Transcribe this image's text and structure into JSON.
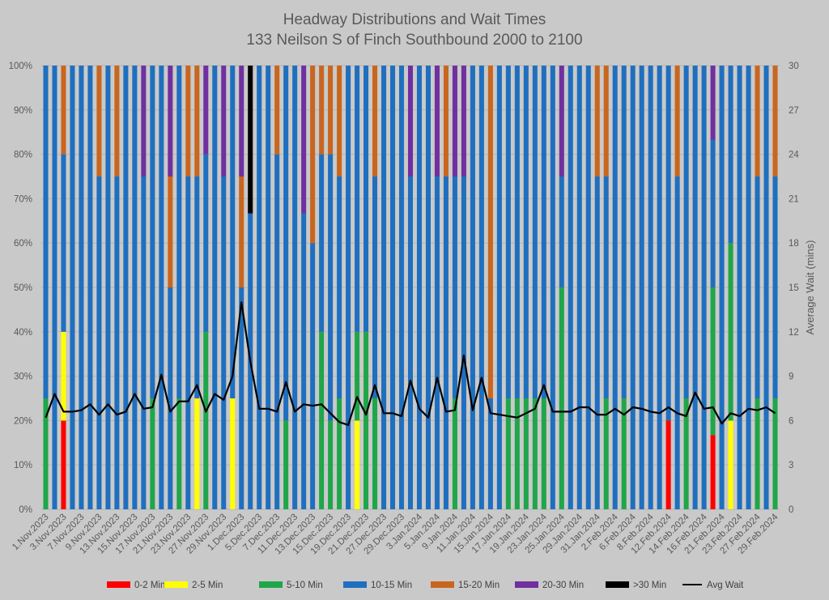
{
  "chart_data": {
    "type": "bar",
    "title": "Headway Distributions and Wait Times",
    "subtitle": "133 Neilson  S of Finch Southbound 2000 to 2100",
    "y2label": "Average Wait (mins)",
    "ylim": [
      0,
      100
    ],
    "y2lim": [
      0,
      30
    ],
    "yticks": [
      "0%",
      "10%",
      "20%",
      "30%",
      "40%",
      "50%",
      "60%",
      "70%",
      "80%",
      "90%",
      "100%"
    ],
    "y2ticks": [
      "0",
      "3",
      "6",
      "9",
      "12",
      "15",
      "18",
      "21",
      "24",
      "27",
      "30"
    ],
    "colors": {
      "0-2 Min": "#ff0000",
      "2-5 Min": "#ffff00",
      "5-10 Min": "#1fa64a",
      "10-15 Min": "#1f6fbf",
      "15-20 Min": "#c8661f",
      "20-30 Min": "#7030a0",
      ">30 Min": "#000000",
      "Avg Wait": "#000000"
    },
    "legend": [
      "0-2 Min",
      "2-5 Min",
      "5-10 Min",
      "10-15 Min",
      "15-20 Min",
      "20-30 Min",
      ">30 Min",
      "Avg Wait"
    ],
    "categories": [
      "1.Nov.2023",
      "2.Nov.2023",
      "3.Nov.2023",
      "6.Nov.2023",
      "7.Nov.2023",
      "8.Nov.2023",
      "9.Nov.2023",
      "10.Nov.2023",
      "13.Nov.2023",
      "14.Nov.2023",
      "15.Nov.2023",
      "16.Nov.2023",
      "17.Nov.2023",
      "20.Nov.2023",
      "21.Nov.2023",
      "22.Nov.2023",
      "23.Nov.2023",
      "24.Nov.2023",
      "27.Nov.2023",
      "28.Nov.2023",
      "29.Nov.2023",
      "30.Nov.2023",
      "1.Dec.2023",
      "4.Dec.2023",
      "5.Dec.2023",
      "6.Dec.2023",
      "7.Dec.2023",
      "8.Dec.2023",
      "11.Dec.2023",
      "12.Dec.2023",
      "13.Dec.2023",
      "14.Dec.2023",
      "15.Dec.2023",
      "18.Dec.2023",
      "19.Dec.2023",
      "20.Dec.2023",
      "21.Dec.2023",
      "22.Dec.2023",
      "27.Dec.2023",
      "28.Dec.2023",
      "29.Dec.2023",
      "2.Jan.2024",
      "3.Jan.2024",
      "4.Jan.2024",
      "5.Jan.2024",
      "8.Jan.2024",
      "9.Jan.2024",
      "10.Jan.2024",
      "11.Jan.2024",
      "12.Jan.2024",
      "15.Jan.2024",
      "16.Jan.2024",
      "17.Jan.2024",
      "18.Jan.2024",
      "19.Jan.2024",
      "22.Jan.2024",
      "23.Jan.2024",
      "24.Jan.2024",
      "25.Jan.2024",
      "26.Jan.2024",
      "29.Jan.2024",
      "30.Jan.2024",
      "31.Jan.2024",
      "1.Feb.2024",
      "2.Feb.2024",
      "5.Feb.2024",
      "6.Feb.2024",
      "7.Feb.2024",
      "8.Feb.2024",
      "9.Feb.2024",
      "12.Feb.2024",
      "13.Feb.2024",
      "14.Feb.2024",
      "15.Feb.2024",
      "16.Feb.2024",
      "20.Feb.2024",
      "21.Feb.2024",
      "22.Feb.2024",
      "23.Feb.2024",
      "26.Feb.2024",
      "27.Feb.2024",
      "28.Feb.2024",
      "29.Feb.2024"
    ],
    "xtick_labels": [
      "1.Nov.2023",
      "3.Nov.2023",
      "7.Nov.2023",
      "9.Nov.2023",
      "13.Nov.2023",
      "15.Nov.2023",
      "17.Nov.2023",
      "21.Nov.2023",
      "23.Nov.2023",
      "27.Nov.2023",
      "29.Nov.2023",
      "1.Dec.2023",
      "5.Dec.2023",
      "7.Dec.2023",
      "11.Dec.2023",
      "13.Dec.2023",
      "15.Dec.2023",
      "19.Dec.2023",
      "21.Dec.2023",
      "27.Dec.2023",
      "29.Dec.2023",
      "3.Jan.2024",
      "5.Jan.2024",
      "9.Jan.2024",
      "11.Jan.2024",
      "15.Jan.2024",
      "17.Jan.2024",
      "19.Jan.2024",
      "23.Jan.2024",
      "25.Jan.2024",
      "29.Jan.2024",
      "31.Jan.2024",
      "2.Feb.2024",
      "6.Feb.2024",
      "8.Feb.2024",
      "12.Feb.2024",
      "14.Feb.2024",
      "16.Feb.2024",
      "21.Feb.2024",
      "23.Feb.2024",
      "27.Feb.2024",
      "29.Feb.2024"
    ],
    "series": [
      {
        "name": "0-2 Min",
        "values": [
          0,
          0,
          20,
          0,
          0,
          0,
          0,
          0,
          0,
          0,
          0,
          0,
          0,
          0,
          0,
          0,
          0,
          0,
          0,
          0,
          0,
          0,
          0,
          0,
          0,
          0,
          0,
          0,
          0,
          0,
          0,
          0,
          0,
          0,
          0,
          0,
          0,
          0,
          0,
          0,
          0,
          0,
          0,
          0,
          0,
          0,
          0,
          0,
          0,
          0,
          0,
          0,
          0,
          0,
          0,
          0,
          0,
          0,
          0,
          0,
          0,
          0,
          0,
          0,
          0,
          0,
          0,
          0,
          0,
          0,
          20,
          0,
          0,
          0,
          0,
          16.7,
          0,
          0,
          0,
          0,
          0,
          0,
          0
        ]
      },
      {
        "name": "2-5 Min",
        "values": [
          0,
          0,
          20,
          0,
          0,
          0,
          0,
          0,
          0,
          0,
          0,
          0,
          0,
          0,
          0,
          0,
          0,
          25,
          0,
          0,
          0,
          25,
          0,
          0,
          0,
          0,
          0,
          0,
          0,
          0,
          0,
          0,
          0,
          0,
          0,
          20,
          0,
          0,
          0,
          0,
          0,
          0,
          0,
          0,
          0,
          0,
          0,
          0,
          0,
          0,
          0,
          0,
          0,
          0,
          0,
          0,
          0,
          0,
          0,
          0,
          0,
          0,
          0,
          0,
          0,
          0,
          0,
          0,
          0,
          0,
          0,
          0,
          0,
          0,
          0,
          0,
          0,
          20,
          0,
          0,
          0,
          0,
          0
        ]
      },
      {
        "name": "5-10 Min",
        "values": [
          25,
          0,
          0,
          0,
          0,
          0,
          0,
          0,
          0,
          0,
          0,
          0,
          25,
          0,
          0,
          25,
          0,
          0,
          40,
          0,
          0,
          0,
          0,
          0,
          0,
          0,
          0,
          20,
          0,
          0,
          0,
          40,
          20,
          25,
          0,
          20,
          40,
          25,
          0,
          0,
          0,
          0,
          0,
          0,
          0,
          0,
          25,
          0,
          0,
          0,
          0,
          0,
          25,
          25,
          25,
          25,
          25,
          0,
          50,
          0,
          0,
          0,
          0,
          25,
          0,
          25,
          0,
          0,
          0,
          0,
          0,
          0,
          25,
          0,
          0,
          33.3,
          0,
          40,
          0,
          0,
          25,
          0,
          25
        ]
      },
      {
        "name": "10-15 Min",
        "values": [
          75,
          100,
          40,
          100,
          100,
          100,
          75,
          100,
          75,
          100,
          100,
          75,
          75,
          100,
          50,
          75,
          75,
          50,
          40,
          100,
          75,
          75,
          50,
          66.7,
          100,
          100,
          80,
          80,
          100,
          66.7,
          60,
          40,
          60,
          50,
          100,
          60,
          60,
          50,
          100,
          100,
          100,
          75,
          100,
          100,
          75,
          75,
          50,
          75,
          100,
          100,
          25,
          100,
          75,
          75,
          75,
          75,
          75,
          100,
          25,
          100,
          100,
          100,
          75,
          50,
          100,
          75,
          100,
          100,
          100,
          100,
          80,
          75,
          75,
          100,
          100,
          33.3,
          100,
          40,
          100,
          100,
          50,
          100,
          50
        ]
      },
      {
        "name": "15-20 Min",
        "values": [
          0,
          0,
          20,
          0,
          0,
          0,
          25,
          0,
          25,
          0,
          0,
          0,
          0,
          0,
          25,
          0,
          25,
          25,
          0,
          0,
          0,
          0,
          25,
          0,
          0,
          0,
          20,
          0,
          0,
          0,
          40,
          20,
          20,
          25,
          0,
          0,
          0,
          25,
          0,
          0,
          0,
          0,
          0,
          0,
          0,
          25,
          0,
          0,
          0,
          0,
          75,
          0,
          0,
          0,
          0,
          0,
          0,
          0,
          0,
          0,
          0,
          0,
          25,
          25,
          0,
          0,
          0,
          0,
          0,
          0,
          0,
          25,
          0,
          0,
          0,
          0,
          0,
          0,
          0,
          0,
          25,
          0,
          25
        ]
      },
      {
        "name": "20-30 Min",
        "values": [
          0,
          0,
          0,
          0,
          0,
          0,
          0,
          0,
          0,
          0,
          0,
          25,
          0,
          0,
          25,
          0,
          0,
          0,
          20,
          0,
          25,
          0,
          25,
          0,
          0,
          0,
          0,
          0,
          0,
          33.3,
          0,
          0,
          0,
          0,
          0,
          0,
          0,
          0,
          0,
          0,
          0,
          25,
          0,
          0,
          25,
          0,
          25,
          25,
          0,
          0,
          0,
          0,
          0,
          0,
          0,
          0,
          0,
          0,
          25,
          0,
          0,
          0,
          0,
          0,
          0,
          0,
          0,
          0,
          0,
          0,
          0,
          0,
          0,
          0,
          0,
          16.7,
          0,
          0,
          0,
          0,
          0,
          0,
          0
        ]
      },
      {
        "name": ">30 Min",
        "values": [
          0,
          0,
          0,
          0,
          0,
          0,
          0,
          0,
          0,
          0,
          0,
          0,
          0,
          0,
          0,
          0,
          0,
          0,
          0,
          0,
          0,
          0,
          0,
          33.3,
          0,
          0,
          0,
          0,
          0,
          0,
          0,
          0,
          0,
          0,
          0,
          0,
          0,
          0,
          0,
          0,
          0,
          0,
          0,
          0,
          0,
          0,
          0,
          0,
          0,
          0,
          0,
          0,
          0,
          0,
          0,
          0,
          0,
          0,
          0,
          0,
          0,
          0,
          0,
          0,
          0,
          0,
          0,
          0,
          0,
          0,
          0,
          0,
          0,
          0,
          0,
          0,
          0,
          0,
          0,
          0,
          0,
          0,
          0
        ]
      },
      {
        "name": "Avg Wait",
        "axis": "right",
        "values": [
          6.2,
          7.8,
          6.6,
          6.6,
          6.7,
          7.1,
          6.4,
          7.1,
          6.4,
          6.6,
          7.8,
          6.8,
          6.9,
          9.1,
          6.6,
          7.3,
          7.3,
          8.4,
          6.6,
          7.8,
          7.4,
          9.0,
          14.0,
          10.0,
          6.8,
          6.8,
          6.6,
          8.6,
          6.6,
          7.1,
          7.0,
          7.1,
          6.5,
          5.9,
          5.7,
          7.6,
          6.4,
          8.4,
          6.5,
          6.5,
          6.3,
          8.7,
          6.8,
          6.2,
          8.9,
          6.6,
          6.7,
          10.4,
          6.7,
          8.9,
          6.5,
          6.4,
          6.3,
          6.2,
          6.5,
          6.8,
          8.4,
          6.6,
          6.6,
          6.6,
          6.9,
          6.9,
          6.4,
          6.4,
          6.8,
          6.4,
          6.9,
          6.8,
          6.6,
          6.5,
          6.9,
          6.5,
          6.3,
          7.9,
          6.8,
          6.9,
          5.8,
          6.5,
          6.3,
          6.8,
          6.7,
          6.9,
          6.5
        ]
      }
    ]
  }
}
